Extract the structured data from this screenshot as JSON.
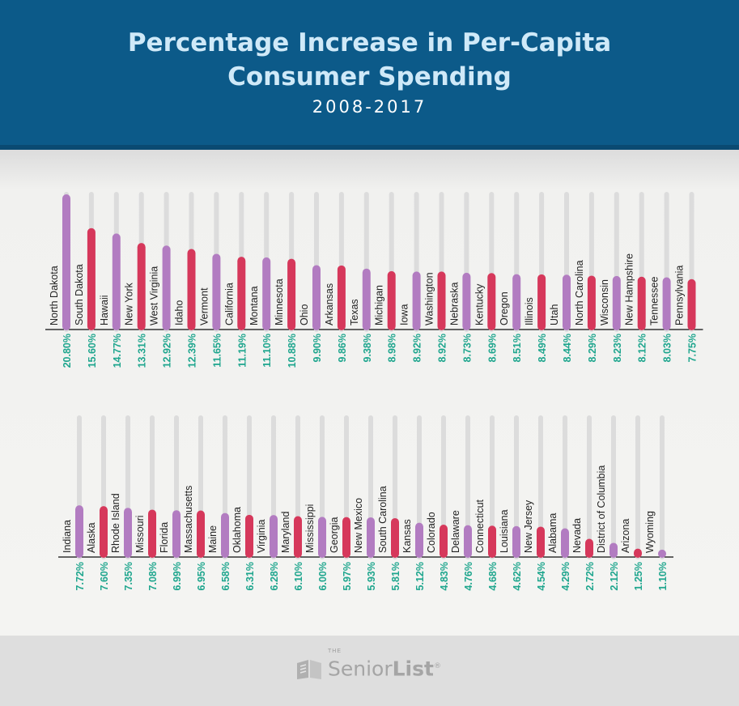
{
  "header": {
    "title_line1": "Percentage Increase in Per-Capita",
    "title_line2": "Consumer Spending",
    "subtitle": "2008-2017"
  },
  "footer": {
    "logo_small": "THE",
    "logo_text_regular": "Senior",
    "logo_text_bold": "List",
    "logo_mark": "®"
  },
  "colors": {
    "header_bg": "#0c5a89",
    "purple_bar": "#b27cc1",
    "red_bar": "#d6385b",
    "track": "#dcdcdc",
    "value_text": "#1fa68e",
    "label_text": "#222222"
  },
  "chart_data": {
    "type": "bar",
    "orientation": "vertical",
    "grid": false,
    "legend": "none",
    "ylim": [
      0,
      20.8
    ],
    "bar_colors_alternate": [
      "purple",
      "red"
    ],
    "rows": [
      {
        "categories": [
          "North Dakota",
          "South Dakota",
          "Hawaii",
          "New York",
          "West Virginia",
          "Idaho",
          "Vermont",
          "California",
          "Montana",
          "Minnesota",
          "Ohio",
          "Arkansas",
          "Texas",
          "Michigan",
          "Iowa",
          "Washington",
          "Nebraska",
          "Kentucky",
          "Oregon",
          "Illinois",
          "Utah",
          "North Carolina",
          "Wisconsin",
          "New Hampshire",
          "Tennessee",
          "Pennsylvania"
        ],
        "values": [
          20.8,
          15.6,
          14.77,
          13.31,
          12.92,
          12.39,
          11.65,
          11.19,
          11.1,
          10.88,
          9.9,
          9.86,
          9.38,
          8.98,
          8.92,
          8.92,
          8.73,
          8.69,
          8.51,
          8.49,
          8.44,
          8.29,
          8.23,
          8.12,
          8.03,
          7.75
        ],
        "value_labels": [
          "20.80%",
          "15.60%",
          "14.77%",
          "13.31%",
          "12.92%",
          "12.39%",
          "11.65%",
          "11.19%",
          "11.10%",
          "10.88%",
          "9.90%",
          "9.86%",
          "9.38%",
          "8.98%",
          "8.92%",
          "8.92%",
          "8.73%",
          "8.69%",
          "8.51%",
          "8.49%",
          "8.44%",
          "8.29%",
          "8.23%",
          "8.12%",
          "8.03%",
          "7.75%"
        ]
      },
      {
        "categories": [
          "Indiana",
          "Alaska",
          "Rhode Island",
          "Missouri",
          "Florida",
          "Massachusetts",
          "Maine",
          "Oklahoma",
          "Virginia",
          "Maryland",
          "Mississippi",
          "Georgia",
          "New Mexico",
          "South Carolina",
          "Kansas",
          "Colorado",
          "Delaware",
          "Connecticut",
          "Louisiana",
          "New Jersey",
          "Alabama",
          "Nevada",
          "District of Columbia",
          "Arizona",
          "Wyoming"
        ],
        "values": [
          7.72,
          7.6,
          7.35,
          7.08,
          6.99,
          6.95,
          6.58,
          6.31,
          6.28,
          6.1,
          6.0,
          5.97,
          5.93,
          5.81,
          5.12,
          4.83,
          4.76,
          4.68,
          4.62,
          4.54,
          4.29,
          2.72,
          2.12,
          1.25,
          1.1
        ],
        "value_labels": [
          "7.72%",
          "7.60%",
          "7.35%",
          "7.08%",
          "6.99%",
          "6.95%",
          "6.58%",
          "6.31%",
          "6.28%",
          "6.10%",
          "6.00%",
          "5.97%",
          "5.93%",
          "5.81%",
          "5.12%",
          "4.83%",
          "4.76%",
          "4.68%",
          "4.62%",
          "4.54%",
          "4.29%",
          "2.72%",
          "2.12%",
          "1.25%",
          "1.10%"
        ]
      }
    ]
  }
}
